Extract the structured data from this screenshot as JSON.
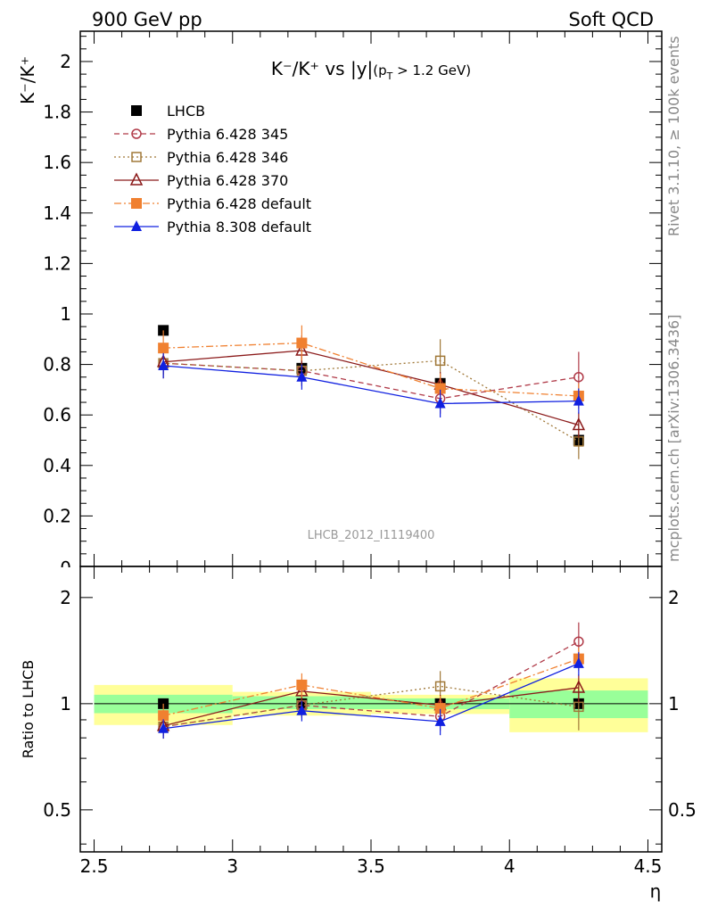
{
  "header": {
    "left": "900 GeV pp",
    "right": "Soft QCD"
  },
  "side_text": {
    "rivet": "Rivet 3.1.10, ≥ 100k events",
    "mcplots": "mcplots.cern.ch [arXiv:1306.3436]"
  },
  "chart_data": {
    "type": "line",
    "title_main": "K⁻/K⁺ vs |y|",
    "title_sub": "(p",
    "title_sub_idx": "T",
    "title_sub_tail": " > 1.2 GeV)",
    "ylabel_top": "K⁻/K⁺",
    "ylabel_ratio": "Ratio to LHCB",
    "xlabel": "η",
    "watermark": "LHCB_2012_I1119400",
    "x_ticks": [
      "2.5",
      "3",
      "3.5",
      "4",
      "4.5"
    ],
    "y_ticks_top": [
      "0.2",
      "0.4",
      "0.6",
      "0.8",
      "1",
      "1.2",
      "1.4",
      "1.6",
      "1.8",
      "2"
    ],
    "y_ticks_ratio": [
      "0.5",
      "1",
      "2"
    ],
    "y_tick_top_zero": "0",
    "xlim": [
      2.45,
      4.55
    ],
    "ylim_top": [
      0,
      2.12
    ],
    "ylim_ratio": [
      0.38,
      2.45
    ],
    "ratio_log_scale": true,
    "x": [
      2.75,
      3.25,
      3.75,
      4.25
    ],
    "bins": [
      [
        2.5,
        3.0
      ],
      [
        3.0,
        3.5
      ],
      [
        3.5,
        4.0
      ],
      [
        4.0,
        4.5
      ]
    ],
    "data_band": {
      "inner": [
        [
          0.94,
          1.06
        ],
        [
          0.965,
          1.05
        ],
        [
          0.965,
          1.035
        ],
        [
          0.91,
          1.09
        ]
      ],
      "outer": [
        [
          0.87,
          1.13
        ],
        [
          0.925,
          1.08
        ],
        [
          0.935,
          1.06
        ],
        [
          0.83,
          1.18
        ]
      ]
    },
    "series": [
      {
        "name": "LHCB",
        "color": "#000000",
        "marker": "filled-square",
        "line": "none",
        "values": [
          0.935,
          0.785,
          0.725,
          0.5
        ],
        "errors": [
          0.005,
          0.005,
          0.005,
          0.005
        ],
        "ratio": [
          1.0,
          1.0,
          1.0,
          1.0
        ]
      },
      {
        "name": "Pythia 6.428 345",
        "color": "#b03a48",
        "marker": "open-circle",
        "line": "dashed",
        "values": [
          0.805,
          0.775,
          0.665,
          0.75
        ],
        "errors": [
          0.06,
          0.06,
          0.06,
          0.1
        ],
        "ratio": [
          0.86,
          0.99,
          0.92,
          1.5
        ]
      },
      {
        "name": "Pythia 6.428 346",
        "color": "#a07838",
        "marker": "open-square",
        "line": "dotted",
        "values": [
          0.805,
          0.775,
          0.815,
          0.495
        ],
        "errors": [
          0.06,
          0.06,
          0.085,
          0.07
        ],
        "ratio": [
          0.86,
          0.99,
          1.12,
          0.98
        ]
      },
      {
        "name": "Pythia 6.428 370",
        "color": "#8b1a1a",
        "marker": "open-triangle",
        "line": "solid",
        "values": [
          0.81,
          0.855,
          0.72,
          0.56
        ],
        "errors": [
          0.05,
          0.06,
          0.05,
          0.05
        ],
        "ratio": [
          0.865,
          1.085,
          0.99,
          1.11
        ]
      },
      {
        "name": "Pythia 6.428 default",
        "color": "#f08030",
        "marker": "filled-square",
        "line": "dashdot",
        "values": [
          0.865,
          0.885,
          0.705,
          0.675
        ],
        "errors": [
          0.07,
          0.07,
          0.06,
          0.05
        ],
        "ratio": [
          0.925,
          1.13,
          0.97,
          1.34
        ]
      },
      {
        "name": "Pythia 8.308 default",
        "color": "#1020e0",
        "marker": "filled-triangle",
        "line": "solid",
        "values": [
          0.795,
          0.75,
          0.645,
          0.655
        ],
        "errors": [
          0.05,
          0.05,
          0.055,
          0.05
        ],
        "ratio": [
          0.85,
          0.955,
          0.89,
          1.3
        ]
      }
    ]
  }
}
